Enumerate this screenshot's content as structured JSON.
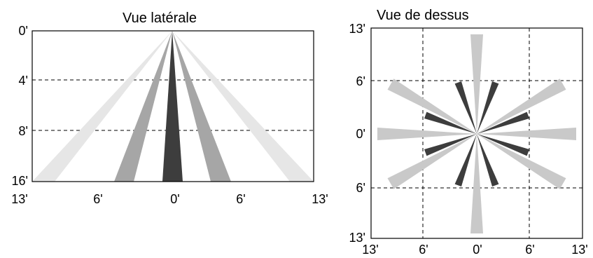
{
  "side_view": {
    "title": "Vue latérale",
    "y_ticks": [
      "0'",
      "4'",
      "8'",
      "16'"
    ],
    "x_ticks": [
      "13'",
      "6'",
      "0'",
      "6'",
      "13'"
    ]
  },
  "top_view": {
    "title": "Vue de dessus",
    "y_ticks": [
      "13'",
      "6'",
      "0'",
      "6'",
      "13'"
    ],
    "x_ticks": [
      "13'",
      "6'",
      "0'",
      "6'",
      "13'"
    ]
  },
  "colors": {
    "outer_zone": "#e6e6e6",
    "top_outer_zone": "#c9c9c9",
    "middle_zone": "#a6a6a6",
    "inner_zone": "#3d3d3d",
    "frame": "#000000"
  }
}
